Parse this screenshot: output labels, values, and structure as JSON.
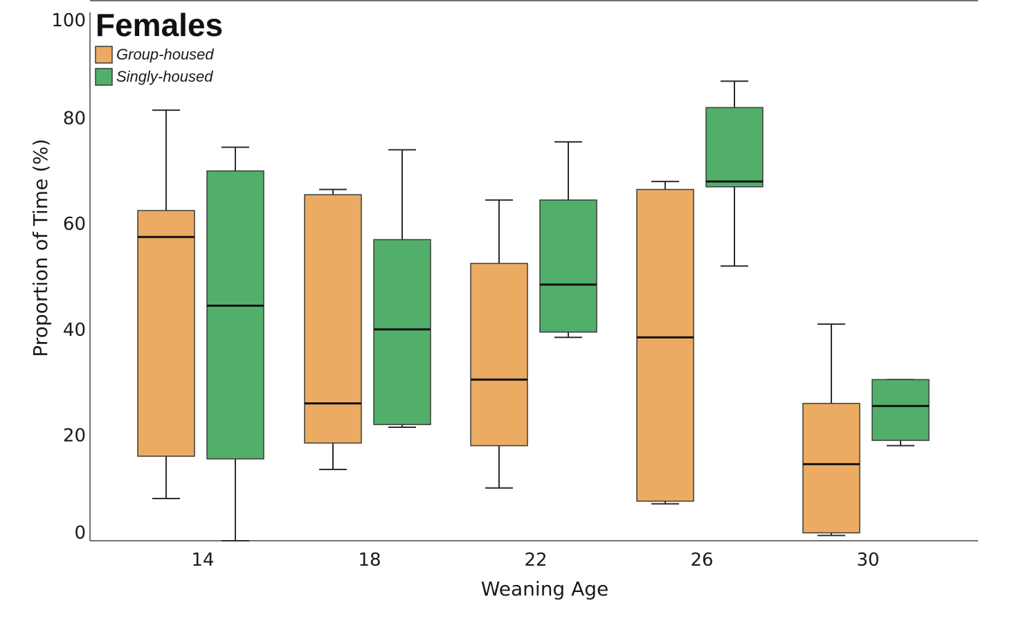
{
  "chart_data": {
    "type": "box",
    "title": "Females",
    "xlabel": "Weaning Age",
    "ylabel": "Proportion of Time (%)",
    "ylim": [
      0,
      100
    ],
    "yticks": [
      "0",
      "20",
      "40",
      "60",
      "80",
      "100"
    ],
    "categories": [
      "14",
      "18",
      "22",
      "26",
      "30"
    ],
    "legend_position": "top-left",
    "series": [
      {
        "name": "Group-housed",
        "color": "#EBAB62",
        "boxes": [
          {
            "min": 8,
            "q1": 16,
            "median": 57.5,
            "q3": 62.5,
            "max": 81.5
          },
          {
            "min": 13.5,
            "q1": 18.5,
            "median": 26,
            "q3": 65.5,
            "max": 66.5
          },
          {
            "min": 10,
            "q1": 18,
            "median": 30.5,
            "q3": 52.5,
            "max": 64.5
          },
          {
            "min": 7,
            "q1": 7.5,
            "median": 38.5,
            "q3": 66.5,
            "max": 68
          },
          {
            "min": 1,
            "q1": 1.5,
            "median": 14.5,
            "q3": 26,
            "max": 41
          }
        ]
      },
      {
        "name": "Singly-housed",
        "color": "#52AF6A",
        "boxes": [
          {
            "min": 0,
            "q1": 15.5,
            "median": 44.5,
            "q3": 70,
            "max": 74.5
          },
          {
            "min": 21.5,
            "q1": 22,
            "median": 40,
            "q3": 57,
            "max": 74
          },
          {
            "min": 38.5,
            "q1": 39.5,
            "median": 48.5,
            "q3": 64.5,
            "max": 75.5
          },
          {
            "min": 52,
            "q1": 67,
            "median": 68,
            "q3": 82,
            "max": 87
          },
          {
            "min": 18,
            "q1": 19,
            "median": 25.5,
            "q3": 30.5,
            "max": 30.5
          }
        ]
      }
    ]
  }
}
